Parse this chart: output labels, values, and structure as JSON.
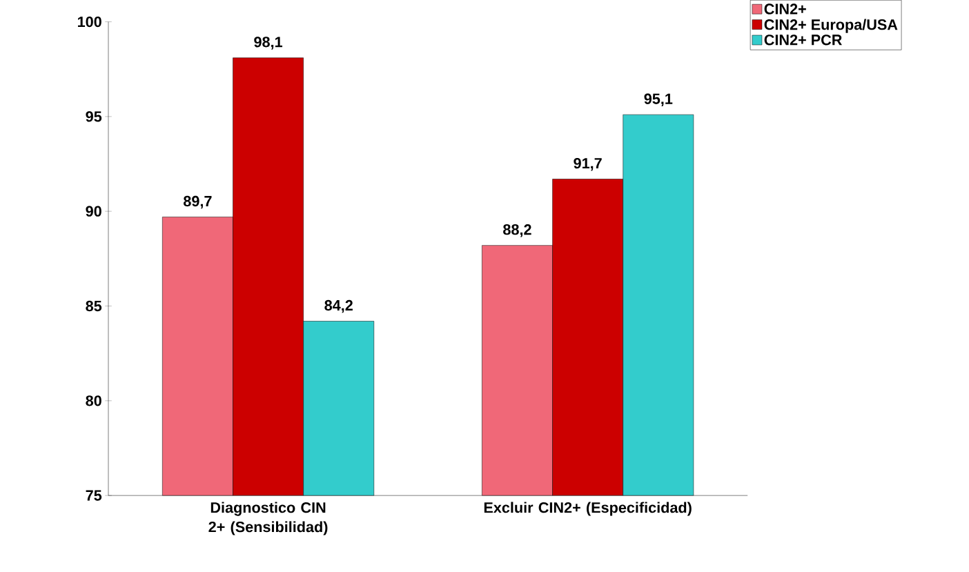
{
  "chart_data": {
    "type": "bar",
    "categories": [
      "Diagnostico CIN 2+ (Sensibilidad)",
      "Excluir CIN2+ (Especificidad)"
    ],
    "series": [
      {
        "name": "CIN2+",
        "color": "#f06878",
        "values": [
          89.7,
          88.2
        ],
        "value_labels": [
          "89,7",
          "88,2"
        ]
      },
      {
        "name": "CIN2+ Europa/USA",
        "color": "#cc0000",
        "values": [
          98.1,
          91.7
        ],
        "value_labels": [
          "98,1",
          "91,7"
        ]
      },
      {
        "name": "CIN2+ PCR",
        "color": "#33cccc",
        "values": [
          84.2,
          95.1
        ],
        "value_labels": [
          "84,2",
          "95,1"
        ]
      }
    ],
    "ylim": [
      75,
      100
    ],
    "yticks": [
      75,
      80,
      85,
      90,
      95,
      100
    ],
    "grid": false,
    "legend": "top right"
  }
}
